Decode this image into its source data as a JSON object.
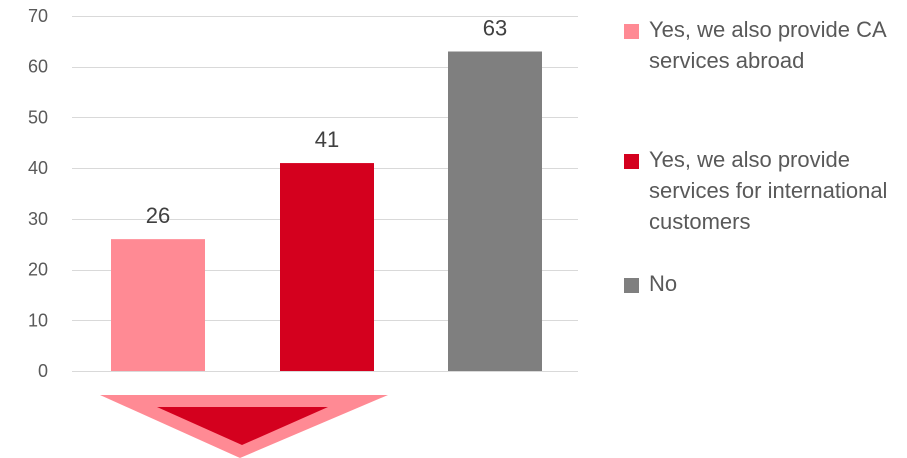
{
  "chart_data": {
    "type": "bar",
    "categories": [
      "Yes, we also provide CA services abroad",
      "Yes, we also provide services for international customers",
      "No"
    ],
    "values": [
      26,
      41,
      63
    ],
    "colors": [
      "#ff8a94",
      "#d4001e",
      "#7f7f7f"
    ],
    "data_labels": [
      "26",
      "41",
      "63"
    ],
    "title": "",
    "xlabel": "",
    "ylabel": "",
    "ylim": [
      0,
      70
    ],
    "yticks": [
      0,
      10,
      20,
      30,
      40,
      50,
      60,
      70
    ],
    "ytick_labels": [
      "0",
      "10",
      "20",
      "30",
      "40",
      "50",
      "60",
      "70"
    ],
    "grid": true,
    "legend_position": "right",
    "gridline_color": "#d9d9d9",
    "annotation": "down-arrow-triangle",
    "annotation_colors": [
      "#ff8a94",
      "#d4001e"
    ]
  }
}
